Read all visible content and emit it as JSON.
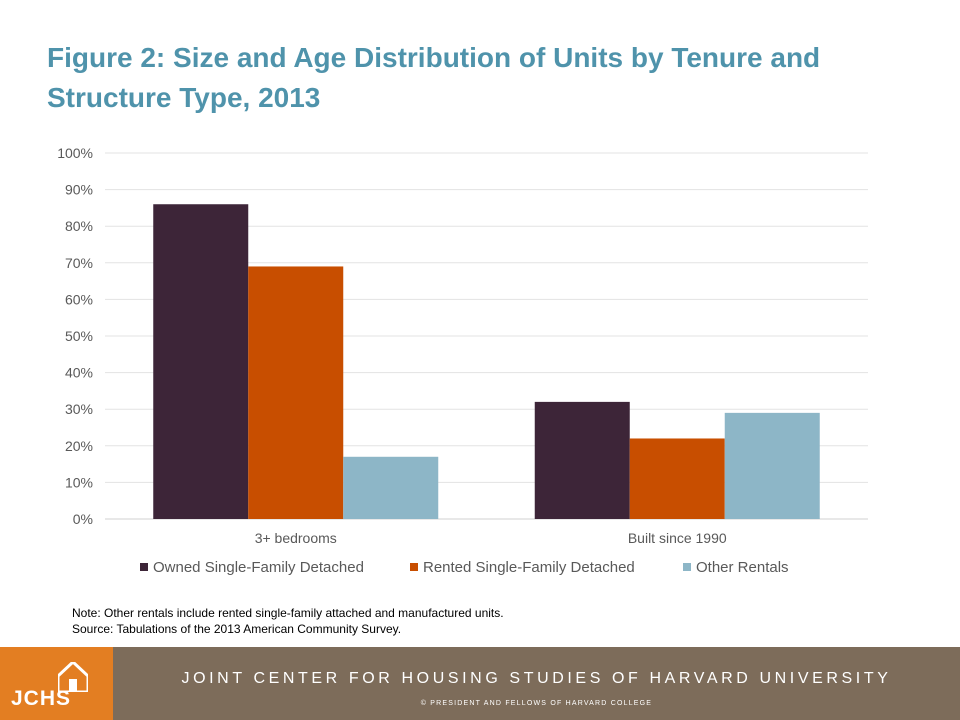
{
  "title": "Figure 2: Size and Age Distribution of Units by Tenure and Structure Type, 2013",
  "chart_data": {
    "type": "bar",
    "categories": [
      "3+ bedrooms",
      "Built since 1990"
    ],
    "series": [
      {
        "name": "Owned Single-Family Detached",
        "values": [
          86,
          32
        ],
        "color": "#3d2538"
      },
      {
        "name": "Rented Single-Family Detached",
        "values": [
          69,
          22
        ],
        "color": "#c84e00"
      },
      {
        "name": "Other Rentals",
        "values": [
          17,
          29
        ],
        "color": "#8db6c7"
      }
    ],
    "yticks": [
      "0%",
      "10%",
      "20%",
      "30%",
      "40%",
      "50%",
      "60%",
      "70%",
      "80%",
      "90%",
      "100%"
    ],
    "ylim": [
      0,
      100
    ],
    "grid": true,
    "legend_position": "bottom"
  },
  "note": "Note: Other rentals include rented single-family attached and manufactured units.",
  "source": "Source: Tabulations of the 2013 American Community Survey.",
  "footer": {
    "logo": "JCHS",
    "org": "JOINT CENTER FOR HOUSING STUDIES OF HARVARD UNIVERSITY",
    "copyright": "© PRESIDENT AND FELLOWS OF HARVARD COLLEGE"
  }
}
